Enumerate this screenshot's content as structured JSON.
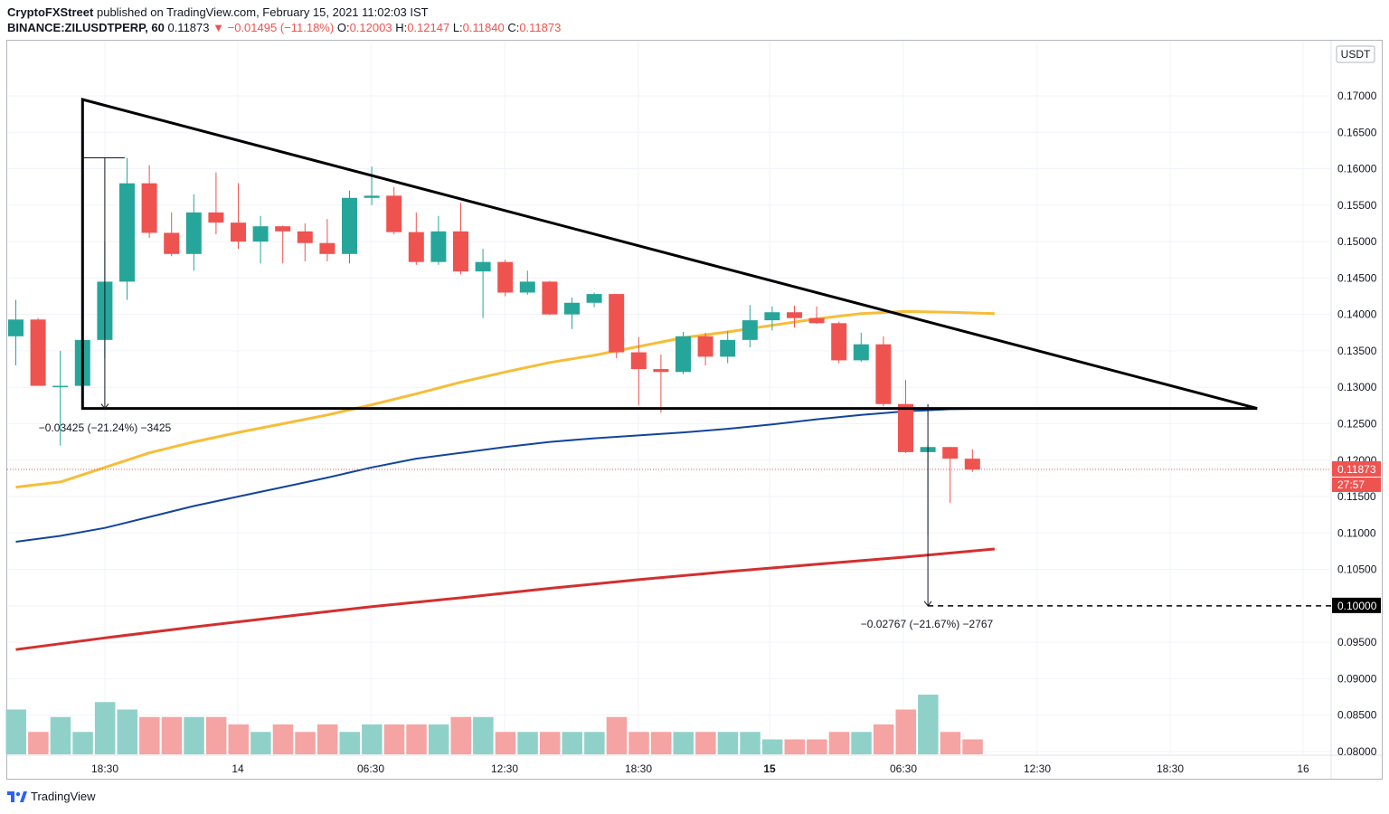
{
  "header": {
    "publisher": "CryptoFXStreet",
    "published_text": "published on TradingView.com, February 15, 2021 11:02:03 IST",
    "symbol": "BINANCE:ZILUSDTPERP, 60",
    "last": "0.11873",
    "change_arrow": "▼",
    "change": "−0.01495 (−11.18%)",
    "o_label": "O:",
    "o": "0.12003",
    "h_label": "H:",
    "h": "0.12147",
    "l_label": "L:",
    "l": "0.11840",
    "c_label": "C:",
    "c": "0.11873"
  },
  "footer": {
    "brand": "TradingView"
  },
  "colors": {
    "up": "#26a69a",
    "down": "#ef5350",
    "vol_up": "#8fd1c9",
    "vol_down": "#f5a3a3",
    "ma50": "#f7bd38",
    "ma100": "#12459b",
    "ma200": "#d32f2f"
  },
  "chart_data": {
    "type": "candlestick",
    "currency_label": "USDT",
    "y_ticks": [
      "0.17000",
      "0.16500",
      "0.16000",
      "0.15500",
      "0.15000",
      "0.14500",
      "0.14000",
      "0.13500",
      "0.13000",
      "0.12500",
      "0.12000",
      "0.11500",
      "0.11000",
      "0.10500",
      "0.10000",
      "0.09500",
      "0.09000",
      "0.08500",
      "0.08000"
    ],
    "x_ticks": [
      "18:30",
      "14",
      "06:30",
      "12:30",
      "18:30",
      "15",
      "06:30",
      "12:30",
      "18:30",
      "16"
    ],
    "price_tag": "0.11873",
    "countdown_tag": "27:57",
    "target_tag": "0.10000",
    "candles": [
      {
        "o": 0.137,
        "h": 0.142,
        "l": 0.133,
        "c": 0.1393
      },
      {
        "o": 0.1393,
        "h": 0.1395,
        "l": 0.1302,
        "c": 0.1302
      },
      {
        "o": 0.1302,
        "h": 0.135,
        "l": 0.122,
        "c": 0.1302
      },
      {
        "o": 0.1302,
        "h": 0.1365,
        "l": 0.13,
        "c": 0.1365
      },
      {
        "o": 0.1365,
        "h": 0.15,
        "l": 0.134,
        "c": 0.1445
      },
      {
        "o": 0.1445,
        "h": 0.1615,
        "l": 0.142,
        "c": 0.158
      },
      {
        "o": 0.158,
        "h": 0.1605,
        "l": 0.1505,
        "c": 0.1512
      },
      {
        "o": 0.1512,
        "h": 0.154,
        "l": 0.148,
        "c": 0.1483
      },
      {
        "o": 0.1483,
        "h": 0.1565,
        "l": 0.146,
        "c": 0.154
      },
      {
        "o": 0.154,
        "h": 0.1595,
        "l": 0.151,
        "c": 0.1526
      },
      {
        "o": 0.1526,
        "h": 0.158,
        "l": 0.149,
        "c": 0.15
      },
      {
        "o": 0.15,
        "h": 0.1535,
        "l": 0.147,
        "c": 0.1521
      },
      {
        "o": 0.1521,
        "h": 0.1522,
        "l": 0.147,
        "c": 0.1514
      },
      {
        "o": 0.1514,
        "h": 0.1525,
        "l": 0.1473,
        "c": 0.1498
      },
      {
        "o": 0.1498,
        "h": 0.1531,
        "l": 0.1473,
        "c": 0.1483
      },
      {
        "o": 0.1483,
        "h": 0.157,
        "l": 0.147,
        "c": 0.156
      },
      {
        "o": 0.156,
        "h": 0.1603,
        "l": 0.155,
        "c": 0.1563
      },
      {
        "o": 0.1563,
        "h": 0.1575,
        "l": 0.151,
        "c": 0.1513
      },
      {
        "o": 0.1513,
        "h": 0.154,
        "l": 0.1468,
        "c": 0.1472
      },
      {
        "o": 0.1472,
        "h": 0.1535,
        "l": 0.1468,
        "c": 0.1514
      },
      {
        "o": 0.1514,
        "h": 0.1553,
        "l": 0.1455,
        "c": 0.1459
      },
      {
        "o": 0.1459,
        "h": 0.149,
        "l": 0.1395,
        "c": 0.1472
      },
      {
        "o": 0.1472,
        "h": 0.1475,
        "l": 0.1425,
        "c": 0.143
      },
      {
        "o": 0.143,
        "h": 0.146,
        "l": 0.1427,
        "c": 0.1445
      },
      {
        "o": 0.1445,
        "h": 0.1446,
        "l": 0.1399,
        "c": 0.14
      },
      {
        "o": 0.14,
        "h": 0.1423,
        "l": 0.138,
        "c": 0.1416
      },
      {
        "o": 0.1416,
        "h": 0.143,
        "l": 0.141,
        "c": 0.1428
      },
      {
        "o": 0.1428,
        "h": 0.1428,
        "l": 0.134,
        "c": 0.1348
      },
      {
        "o": 0.1348,
        "h": 0.1369,
        "l": 0.1275,
        "c": 0.1325
      },
      {
        "o": 0.1325,
        "h": 0.1345,
        "l": 0.1265,
        "c": 0.1321
      },
      {
        "o": 0.1321,
        "h": 0.1376,
        "l": 0.1318,
        "c": 0.137
      },
      {
        "o": 0.137,
        "h": 0.1375,
        "l": 0.133,
        "c": 0.1342
      },
      {
        "o": 0.1342,
        "h": 0.1377,
        "l": 0.1333,
        "c": 0.1365
      },
      {
        "o": 0.1365,
        "h": 0.1413,
        "l": 0.1355,
        "c": 0.1392
      },
      {
        "o": 0.1392,
        "h": 0.1411,
        "l": 0.1378,
        "c": 0.1403
      },
      {
        "o": 0.1403,
        "h": 0.1412,
        "l": 0.1382,
        "c": 0.1395
      },
      {
        "o": 0.1395,
        "h": 0.1411,
        "l": 0.1387,
        "c": 0.1388
      },
      {
        "o": 0.1388,
        "h": 0.139,
        "l": 0.1333,
        "c": 0.1337
      },
      {
        "o": 0.1337,
        "h": 0.1375,
        "l": 0.1335,
        "c": 0.1359
      },
      {
        "o": 0.1359,
        "h": 0.137,
        "l": 0.1274,
        "c": 0.1277
      },
      {
        "o": 0.1277,
        "h": 0.131,
        "l": 0.121,
        "c": 0.1211
      },
      {
        "o": 0.1211,
        "h": 0.1221,
        "l": 0.1097,
        "c": 0.1218
      },
      {
        "o": 0.1218,
        "h": 0.1218,
        "l": 0.1141,
        "c": 0.1202
      },
      {
        "o": 0.1202,
        "h": 0.1215,
        "l": 0.1184,
        "c": 0.1187
      }
    ],
    "volume": [
      0.086,
      0.083,
      0.085,
      0.083,
      0.087,
      0.086,
      0.085,
      0.085,
      0.085,
      0.085,
      0.084,
      0.083,
      0.084,
      0.083,
      0.084,
      0.083,
      0.084,
      0.084,
      0.084,
      0.084,
      0.085,
      0.085,
      0.083,
      0.083,
      0.083,
      0.083,
      0.083,
      0.085,
      0.083,
      0.083,
      0.083,
      0.083,
      0.083,
      0.083,
      0.082,
      0.082,
      0.082,
      0.083,
      0.083,
      0.084,
      0.086,
      0.088,
      0.083,
      0.082
    ],
    "volume_scale_note": "",
    "moving_averages": {
      "ma50": [
        [
          0,
          0.1163
        ],
        [
          2,
          0.117
        ],
        [
          4,
          0.119
        ],
        [
          6,
          0.121
        ],
        [
          8,
          0.1225
        ],
        [
          10,
          0.1238
        ],
        [
          12,
          0.125
        ],
        [
          14,
          0.1262
        ],
        [
          16,
          0.1276
        ],
        [
          18,
          0.1291
        ],
        [
          20,
          0.1307
        ],
        [
          22,
          0.1321
        ],
        [
          24,
          0.1334
        ],
        [
          26,
          0.1344
        ],
        [
          28,
          0.1356
        ],
        [
          30,
          0.1368
        ],
        [
          32,
          0.1376
        ],
        [
          34,
          0.1385
        ],
        [
          36,
          0.1394
        ],
        [
          38,
          0.1401
        ],
        [
          40,
          0.1404
        ],
        [
          42,
          0.1403
        ],
        [
          44,
          0.1401
        ]
      ],
      "ma100": [
        [
          0,
          0.1088
        ],
        [
          2,
          0.1096
        ],
        [
          4,
          0.1107
        ],
        [
          6,
          0.1122
        ],
        [
          8,
          0.1137
        ],
        [
          10,
          0.115
        ],
        [
          12,
          0.1163
        ],
        [
          14,
          0.1176
        ],
        [
          16,
          0.119
        ],
        [
          18,
          0.1202
        ],
        [
          20,
          0.121
        ],
        [
          22,
          0.1218
        ],
        [
          24,
          0.1225
        ],
        [
          26,
          0.123
        ],
        [
          28,
          0.1234
        ],
        [
          30,
          0.1238
        ],
        [
          32,
          0.1243
        ],
        [
          34,
          0.1249
        ],
        [
          36,
          0.1256
        ],
        [
          38,
          0.1262
        ],
        [
          40,
          0.1267
        ],
        [
          42,
          0.127
        ],
        [
          44,
          0.1271
        ]
      ],
      "ma200": [
        [
          0,
          0.094
        ],
        [
          4,
          0.0956
        ],
        [
          8,
          0.0971
        ],
        [
          12,
          0.0985
        ],
        [
          16,
          0.0999
        ],
        [
          20,
          0.1011
        ],
        [
          24,
          0.1024
        ],
        [
          28,
          0.1036
        ],
        [
          32,
          0.1047
        ],
        [
          36,
          0.1057
        ],
        [
          40,
          0.1067
        ],
        [
          44,
          0.1078
        ]
      ]
    },
    "triangle": {
      "apex_top": [
        3.0,
        0.1695
      ],
      "base_left": [
        3.0,
        0.1271
      ],
      "apex_right": [
        55.8,
        0.1271
      ]
    },
    "measure1": {
      "label": "−0.03425 (−21.24%) −3425",
      "from": [
        4.0,
        0.1615
      ],
      "to": [
        4.0,
        0.1271
      ]
    },
    "measure2": {
      "label": "−0.02767 (−21.67%) −2767",
      "from": [
        41.0,
        0.1277
      ],
      "to": [
        41.0,
        0.1
      ]
    },
    "target_level": 0.1,
    "current_price": 0.11873
  }
}
